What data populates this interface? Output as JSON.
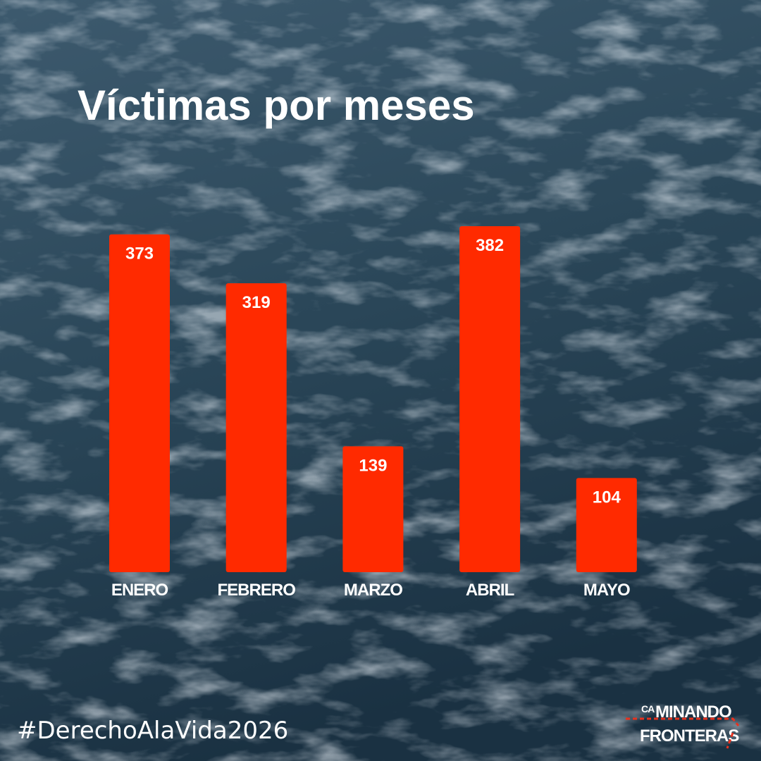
{
  "chart_data": {
    "type": "bar",
    "title": "Víctimas por meses",
    "categories": [
      "ENERO",
      "FEBRERO",
      "MARZO",
      "ABRIL",
      "MAYO"
    ],
    "values": [
      373,
      319,
      139,
      382,
      104
    ],
    "color": "#ff2a00"
  },
  "footer": {
    "hashtag": "#DerechoAlaVida2026",
    "logo": [
      "CA",
      "MINANDO",
      "FRONTERAS"
    ]
  }
}
